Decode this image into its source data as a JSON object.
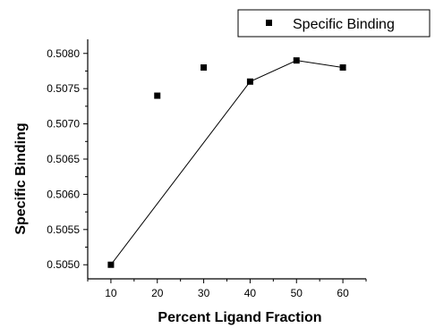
{
  "chart_data": {
    "type": "scatter",
    "xlabel": "Percent Ligand Fraction",
    "ylabel": "Specific Binding",
    "xlim": [
      5,
      65
    ],
    "ylim": [
      0.5048,
      0.5082
    ],
    "x_ticks": [
      "10",
      "20",
      "30",
      "40",
      "50",
      "60"
    ],
    "y_ticks": [
      "0.5050",
      "0.5055",
      "0.5060",
      "0.5065",
      "0.5070",
      "0.5075",
      "0.5080"
    ],
    "series": [
      {
        "name": "Specific Binding",
        "x": [
          10,
          20,
          30,
          40,
          50,
          60
        ],
        "y": [
          0.505,
          0.5074,
          0.5078,
          0.5076,
          0.5079,
          0.5078
        ],
        "marker": "square",
        "color": "#000000"
      }
    ],
    "fit_line": {
      "x": [
        10,
        40,
        50,
        60
      ],
      "y": [
        0.505,
        0.5076,
        0.5079,
        0.5078
      ],
      "color": "#000000"
    },
    "grid": false,
    "legend": "top-right",
    "legend_label": "Specific Binding"
  }
}
